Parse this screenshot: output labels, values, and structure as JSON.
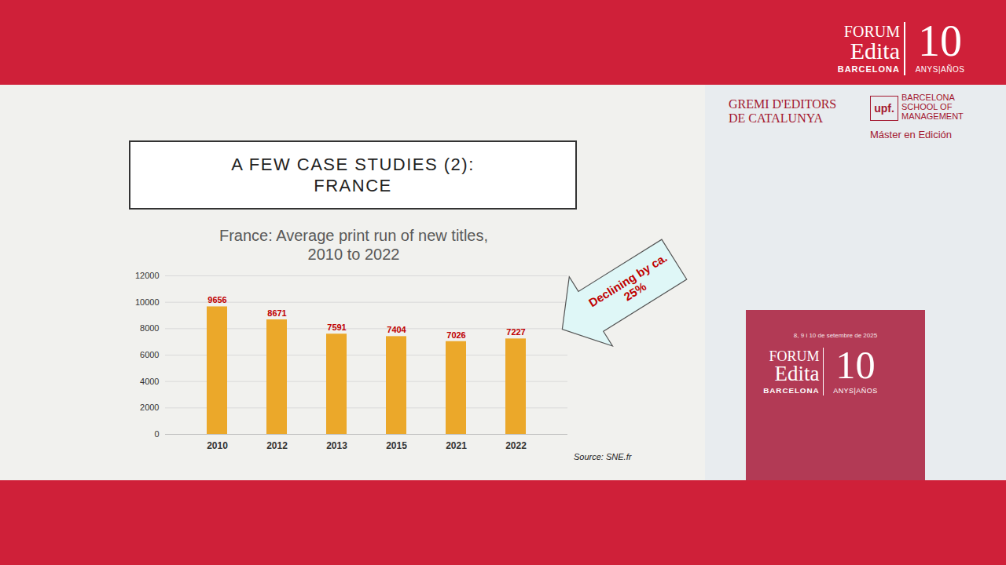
{
  "chart_data": {
    "type": "bar",
    "title": "France: Average print run of new titles, 2010 to 2022",
    "categories": [
      "2010",
      "2012",
      "2013",
      "2015",
      "2021",
      "2022"
    ],
    "values": [
      9656,
      8671,
      7591,
      7404,
      7026,
      7227
    ],
    "color": "#eba82a",
    "ylim": [
      0,
      12000
    ],
    "yticks": [
      0,
      2000,
      4000,
      6000,
      8000,
      10000,
      12000
    ],
    "grid": true,
    "data_labels": true,
    "annotations": [
      "Declining by ca. 25%"
    ],
    "caption": "Source: SNE.fr"
  },
  "slide": {
    "heading": [
      "A FEW CASE STUDIES (2):",
      "FRANCE"
    ]
  },
  "logo": {
    "forum": "FORUM",
    "edita": "Edita",
    "city": "BARCELONA",
    "years": "10",
    "anys": "ANYS|AÑOS"
  },
  "backdrop": {
    "gremi": [
      "GREMI D'EDITORS",
      "DE CATALUNYA"
    ],
    "upf": "upf.",
    "school": [
      "BARCELONA",
      "SCHOOL OF",
      "MANAGEMENT"
    ],
    "master": "Máster en Edición",
    "dates": "8, 9 i 10 de setembre de 2025"
  }
}
